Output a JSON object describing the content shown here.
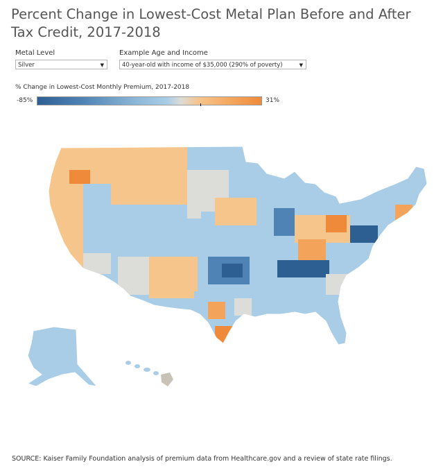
{
  "title": "Percent Change in Lowest-Cost Metal Plan Before and After Tax Credit, 2017-2018",
  "controls": {
    "metal_level": {
      "label": "Metal Level",
      "value": "Silver"
    },
    "age_income": {
      "label": "Example Age and Income",
      "value": "40-year-old with income of $35,000 (290% of poverty)"
    }
  },
  "legend": {
    "title": "% Change in Lowest-Cost Monthly Premium, 2017-2018",
    "min_label": "-85%",
    "max_label": "31%",
    "min": -85,
    "max": 31,
    "colors": {
      "low": "#2e5f92",
      "mid_blue": "#a9cde6",
      "neutral": "#dcdcd8",
      "mid_orange": "#f6c58c",
      "high": "#ef8a3a"
    }
  },
  "source": "SOURCE: Kaiser Family Foundation analysis of premium data from Healthcare.gov and a review of state rate filings."
}
